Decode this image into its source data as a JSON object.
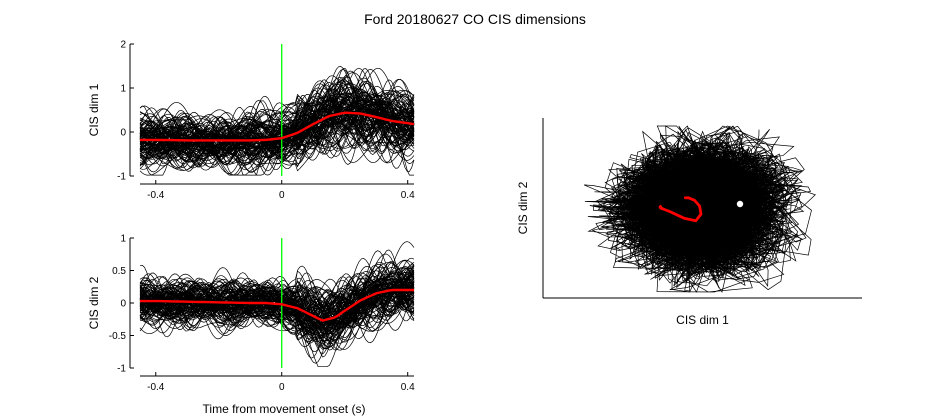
{
  "figure_title": "Ford 20180627 CO CIS dimensions",
  "colors": {
    "trials": "#000000",
    "mean": "#ff0000",
    "movement_onset_line": "#00ff00",
    "axes": "#000000",
    "background": "#ffffff"
  },
  "chart_data": [
    {
      "type": "line",
      "title": "",
      "xlabel": "",
      "ylabel": "CIS dim 1",
      "xlim": [
        -0.45,
        0.42
      ],
      "ylim": [
        -1,
        2
      ],
      "xticks": [
        "-0.4",
        "0",
        "0.4"
      ],
      "yticks": [
        "-1",
        "0",
        "1",
        "2"
      ],
      "vline_x": 0,
      "n_trials_approx": 120,
      "mean_series": {
        "x": [
          -0.45,
          -0.4,
          -0.3,
          -0.2,
          -0.1,
          -0.05,
          0,
          0.05,
          0.1,
          0.15,
          0.2,
          0.25,
          0.3,
          0.35,
          0.4,
          0.42
        ],
        "y": [
          -0.18,
          -0.18,
          -0.19,
          -0.19,
          -0.19,
          -0.18,
          -0.14,
          -0.02,
          0.18,
          0.36,
          0.44,
          0.42,
          0.34,
          0.25,
          0.2,
          0.18
        ]
      }
    },
    {
      "type": "line",
      "title": "",
      "xlabel": "Time from movement onset (s)",
      "ylabel": "CIS dim 2",
      "xlim": [
        -0.45,
        0.42
      ],
      "ylim": [
        -1,
        1
      ],
      "xticks": [
        "-0.4",
        "0",
        "0.4"
      ],
      "yticks": [
        "-1",
        "-0.5",
        "0",
        "0.5",
        "1"
      ],
      "vline_x": 0,
      "n_trials_approx": 120,
      "mean_series": {
        "x": [
          -0.45,
          -0.4,
          -0.3,
          -0.2,
          -0.1,
          -0.05,
          0,
          0.05,
          0.1,
          0.13,
          0.17,
          0.2,
          0.25,
          0.3,
          0.35,
          0.4,
          0.42
        ],
        "y": [
          0.03,
          0.03,
          0.02,
          0.01,
          0.0,
          0.0,
          -0.02,
          -0.08,
          -0.2,
          -0.27,
          -0.22,
          -0.12,
          0.04,
          0.15,
          0.2,
          0.2,
          0.2
        ]
      }
    },
    {
      "type": "scatter",
      "title": "",
      "xlabel": "CIS dim 1",
      "ylabel": "CIS dim 2",
      "grid": false,
      "ticks": false,
      "n_trials_approx": 120,
      "mean_trajectory": {
        "x": [
          -0.18,
          -0.19,
          -0.18,
          -0.14,
          -0.02,
          0.18,
          0.36,
          0.44,
          0.42,
          0.34,
          0.25,
          0.2
        ],
        "y": [
          0.03,
          0.02,
          0.0,
          -0.02,
          -0.08,
          -0.2,
          -0.25,
          -0.12,
          0.04,
          0.15,
          0.2,
          0.2
        ]
      }
    }
  ]
}
